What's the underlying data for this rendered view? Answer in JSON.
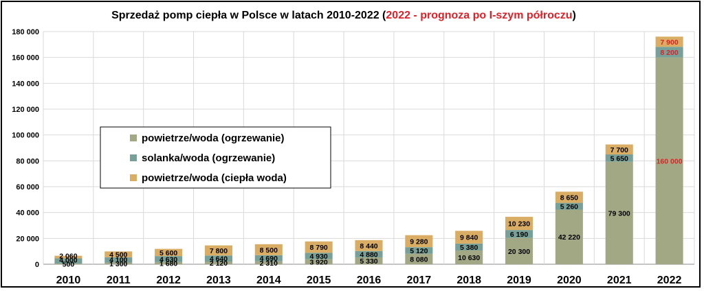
{
  "chart_data": {
    "type": "bar",
    "stacked": true,
    "title_parts": [
      {
        "text": "Sprzedaż pomp ciepła w Polsce w latach 2010-2022 (",
        "color": "#000000"
      },
      {
        "text": "2022 - prognoza po I-szym półroczu",
        "color": "#e31e24"
      },
      {
        "text": ")",
        "color": "#000000"
      }
    ],
    "categories": [
      "2010",
      "2011",
      "2012",
      "2013",
      "2014",
      "2015",
      "2016",
      "2017",
      "2018",
      "2019",
      "2020",
      "2021",
      "2022"
    ],
    "series": [
      {
        "name": "powietrze/woda (ogrzewanie)",
        "color": "#a3a884",
        "values": [
          500,
          1300,
          1680,
          2120,
          2310,
          3920,
          5330,
          8080,
          10630,
          20300,
          42220,
          79300,
          160000
        ],
        "labels": [
          "500",
          "1 300",
          "1 680",
          "2 120",
          "2 310",
          "3 920",
          "5 330",
          "8 080",
          "10 630",
          "20 300",
          "42 220",
          "79 300",
          "160 000"
        ]
      },
      {
        "name": "solanka/woda (ogrzewanie)",
        "color": "#77a099",
        "values": [
          4000,
          4100,
          4630,
          4640,
          4690,
          4930,
          4880,
          5120,
          5380,
          6190,
          5260,
          5650,
          8200
        ],
        "labels": [
          "4 000",
          "4 100",
          "4 630",
          "4 640",
          "4 690",
          "4 930",
          "4 880",
          "5 120",
          "5 380",
          "6 190",
          "5 260",
          "5 650",
          "8 200"
        ]
      },
      {
        "name": "powietrze/woda (ciepła woda)",
        "color": "#d9ad63",
        "values": [
          2060,
          4500,
          5600,
          7800,
          8500,
          8790,
          8440,
          9280,
          9840,
          10230,
          8650,
          7700,
          7900
        ],
        "labels": [
          "2 060",
          "4 500",
          "5 600",
          "7 800",
          "8 500",
          "8 790",
          "8 440",
          "9 280",
          "9 840",
          "10 230",
          "8 650",
          "7 700",
          "7 900"
        ]
      }
    ],
    "highlight_category": "2022",
    "highlight_label_color": "#e31e24",
    "yticks": [
      "0",
      "20 000",
      "40 000",
      "60 000",
      "80 000",
      "100 000",
      "120 000",
      "140 000",
      "160 000",
      "180 000"
    ],
    "ylim": [
      0,
      180000
    ],
    "grid": true,
    "legend_position": "middle-left"
  }
}
